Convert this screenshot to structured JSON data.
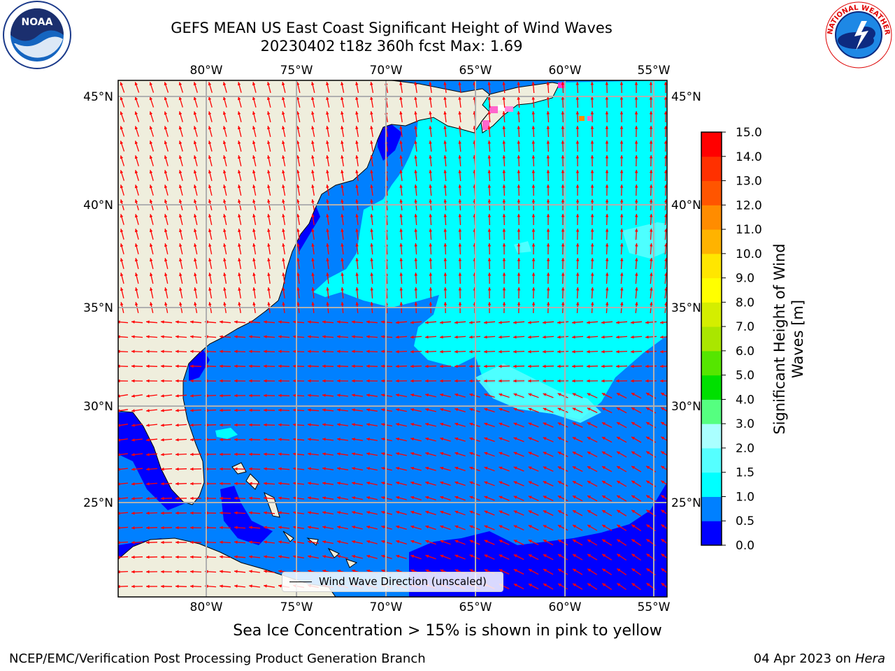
{
  "header": {
    "title_line1": "GEFS MEAN US East Coast Significant Height of Wind Waves",
    "title_line2": "20230402 t18z 360h fcst   Max: 1.69"
  },
  "logos": {
    "left": "NOAA",
    "right": "NATIONAL WEATHER SERVICE"
  },
  "map": {
    "lon_labels": [
      "80°W",
      "75°W",
      "70°W",
      "65°W",
      "60°W",
      "55°W"
    ],
    "lat_labels": [
      "45°N",
      "40°N",
      "35°N",
      "30°N",
      "25°N"
    ],
    "legend_label": "Wind Wave Direction (unscaled)",
    "colors": {
      "land": "#efeedd",
      "ocean_0_0.5": "#0000ff",
      "ocean_0.5_1.0": "#0080ff",
      "ocean_1.0_1.5": "#00ffff",
      "ocean_1.5_2.0": "#55ffff",
      "arrows": "#ff0000",
      "sea_ice": "#ff66cc"
    }
  },
  "colorbar": {
    "title": "Significant Height of Wind Waves [m]",
    "ticks": [
      "0.0",
      "0.5",
      "1.0",
      "1.5",
      "2.0",
      "3.0",
      "4.0",
      "5.0",
      "6.0",
      "7.0",
      "8.0",
      "9.0",
      "10.0",
      "11.0",
      "12.0",
      "13.0",
      "14.0",
      "15.0"
    ],
    "colors": [
      "#0000ff",
      "#0080ff",
      "#00ffff",
      "#55ffff",
      "#aaffff",
      "#55ff80",
      "#00e000",
      "#55e600",
      "#aae600",
      "#d4ee00",
      "#ffff00",
      "#ffe600",
      "#ffb300",
      "#ff8c00",
      "#ff5500",
      "#ff3000",
      "#ff0000"
    ]
  },
  "notes": {
    "sea_ice": "Sea Ice Concentration > 15% is shown in pink to yellow",
    "footer_left": "NCEP/EMC/Verification Post Processing Product Generation Branch",
    "footer_date": "04 Apr 2023 on ",
    "footer_machine": "Hera"
  }
}
